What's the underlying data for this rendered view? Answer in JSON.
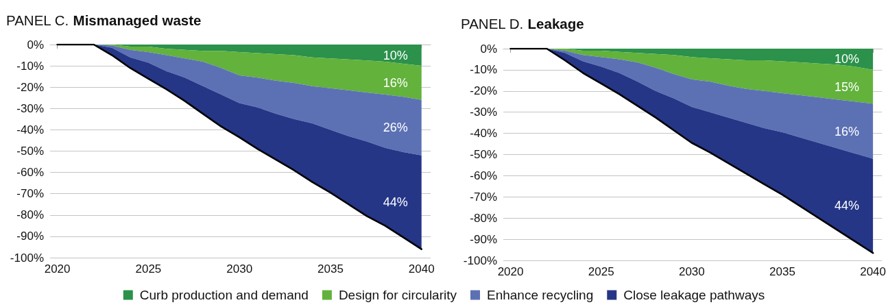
{
  "chart_data": [
    {
      "type": "area",
      "stacked": true,
      "title": "PANEL C. Mismanaged waste",
      "x": [
        2020,
        2021,
        2022,
        2023,
        2024,
        2025,
        2026,
        2027,
        2028,
        2029,
        2030,
        2031,
        2032,
        2033,
        2034,
        2035,
        2036,
        2037,
        2038,
        2039,
        2040
      ],
      "series": [
        {
          "name": "Curb production and demand",
          "color": "#2b914b",
          "values": [
            0,
            0,
            0,
            0,
            -1,
            -1,
            -2,
            -2.5,
            -3,
            -3,
            -3.5,
            -4,
            -4.5,
            -5,
            -6,
            -6.5,
            -7,
            -7.5,
            -8,
            -9,
            -10
          ]
        },
        {
          "name": "Design for circularity",
          "color": "#62b23c",
          "values": [
            0,
            0,
            0,
            -0.5,
            -1.5,
            -2.5,
            -3,
            -4,
            -5,
            -8,
            -11,
            -11.5,
            -12.5,
            -13,
            -13.5,
            -14,
            -14.5,
            -15,
            -15.5,
            -15.5,
            -16
          ]
        },
        {
          "name": "Enhance recycling",
          "color": "#5c71b4",
          "values": [
            0,
            0,
            0,
            -1,
            -3.5,
            -5,
            -7.5,
            -9,
            -11.5,
            -12.5,
            -13,
            -14,
            -15.5,
            -17,
            -17.5,
            -19.5,
            -21.5,
            -23,
            -25,
            -26,
            -26
          ]
        },
        {
          "name": "Close leakage pathways",
          "color": "#253687",
          "values": [
            0,
            0,
            0,
            -3.5,
            -5,
            -7.5,
            -8.5,
            -11,
            -13,
            -15,
            -16,
            -19.5,
            -21.5,
            -24,
            -27.5,
            -29.5,
            -32,
            -35,
            -36.5,
            -40,
            -44
          ]
        }
      ],
      "xlim": [
        2019.6,
        2040.5
      ],
      "xticks": [
        2020,
        2025,
        2030,
        2035,
        2040
      ],
      "ylim": [
        -100,
        0
      ],
      "yticks": [
        {
          "value": -100,
          "label": "-100%"
        },
        {
          "value": -90,
          "label": "-90%"
        },
        {
          "value": -80,
          "label": "-80%"
        },
        {
          "value": -70,
          "label": "-70%"
        },
        {
          "value": -60,
          "label": "-60%"
        },
        {
          "value": -50,
          "label": "-50%"
        },
        {
          "value": -40,
          "label": "-40%"
        },
        {
          "value": -30,
          "label": "-30%"
        },
        {
          "value": -20,
          "label": "-20%"
        },
        {
          "value": -10,
          "label": "-10%"
        },
        {
          "value": 0,
          "label": "0%"
        }
      ],
      "grid": "y",
      "legend": "bottom",
      "annotations": [
        "10%",
        "16%",
        "26%",
        "44%"
      ]
    },
    {
      "type": "area",
      "stacked": true,
      "title": "PANEL D. Leakage",
      "x": [
        2020,
        2021,
        2022,
        2023,
        2024,
        2025,
        2026,
        2027,
        2028,
        2029,
        2030,
        2031,
        2032,
        2033,
        2034,
        2035,
        2036,
        2037,
        2038,
        2039,
        2040
      ],
      "series": [
        {
          "color": "#2b914b",
          "values": [
            0,
            0,
            0,
            0,
            -1,
            -1,
            -1.5,
            -2,
            -2.5,
            -3,
            -4,
            -4.5,
            -5,
            -5.5,
            -5.5,
            -6,
            -6.5,
            -7,
            -7.5,
            -8.5,
            -10
          ]
        },
        {
          "color": "#62b23c",
          "values": [
            0,
            0,
            0,
            -1,
            -2,
            -3,
            -3.5,
            -4.5,
            -6.5,
            -9,
            -10.5,
            -11,
            -12.5,
            -13.5,
            -14.5,
            -15,
            -15.5,
            -16,
            -16.5,
            -16.5,
            -16
          ]
        },
        {
          "color": "#5c71b4",
          "values": [
            0,
            0,
            0,
            -1,
            -3,
            -4.5,
            -6.5,
            -9,
            -11,
            -11.5,
            -13,
            -14.5,
            -15,
            -16,
            -17.5,
            -18.5,
            -20,
            -21.5,
            -23,
            -24.5,
            -26
          ]
        },
        {
          "color": "#253687",
          "values": [
            0,
            0,
            0,
            -3.5,
            -5.5,
            -8,
            -10,
            -11.5,
            -12.5,
            -15,
            -17,
            -19,
            -21.5,
            -24,
            -26.5,
            -29.5,
            -32.5,
            -35.5,
            -38.5,
            -41.5,
            -44.5
          ]
        }
      ],
      "xlim": [
        2019.6,
        2040.5
      ],
      "xticks": [
        2020,
        2025,
        2030,
        2035,
        2040
      ],
      "ylim": [
        -100,
        0
      ],
      "yticks": [
        {
          "value": -100,
          "label": "-100%"
        },
        {
          "value": -90,
          "label": "-90%"
        },
        {
          "value": -80,
          "label": "-80%"
        },
        {
          "value": -70,
          "label": "-70%"
        },
        {
          "value": -60,
          "label": "-60%"
        },
        {
          "value": -50,
          "label": "-50%"
        },
        {
          "value": -40,
          "label": "-40%"
        },
        {
          "value": -30,
          "label": "-30%"
        },
        {
          "value": -20,
          "label": "-20%"
        },
        {
          "value": -10,
          "label": "-10%"
        },
        {
          "value": 0,
          "label": "0%"
        }
      ],
      "grid": "y",
      "annotations": [
        "10%",
        "15%",
        "16%",
        "44%"
      ]
    }
  ]
}
